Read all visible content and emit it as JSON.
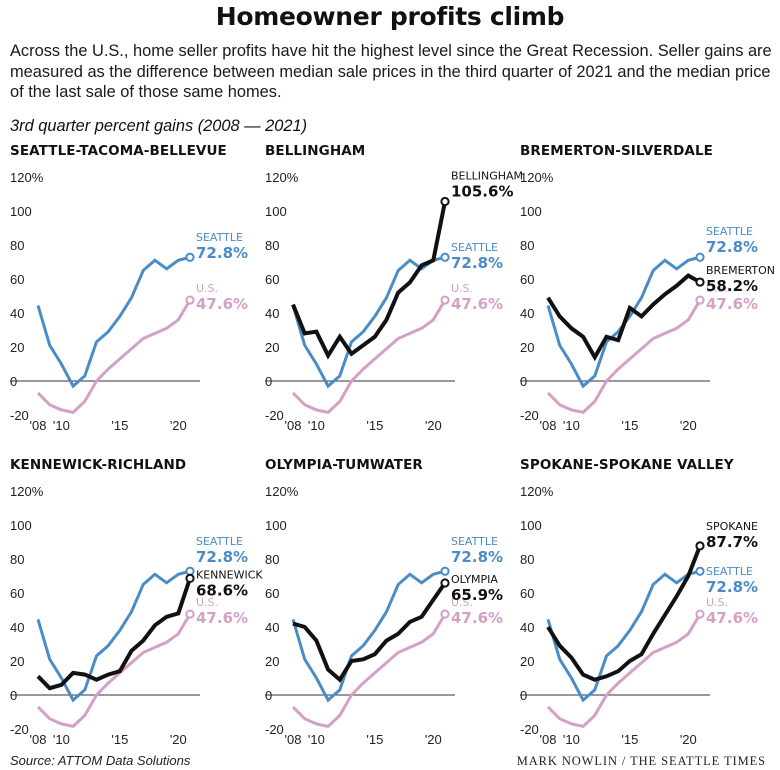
{
  "title": "Homeowner profits climb",
  "dek": "Across the U.S., home seller profits have hit the highest level since the Great Recession. Seller gains are measured as the difference between median sale prices in the third quarter of 2021 and the median price of the last sale of those same homes.",
  "subtitle": "3rd quarter percent gains (2008 — 2021)",
  "source": "Source: ATTOM Data Solutions",
  "credit": "MARK NOWLIN / THE SEATTLE TIMES",
  "colors": {
    "seattle": "#4a8cc6",
    "us": "#d3a1c8",
    "region": "#111111",
    "axis": "#333333"
  },
  "chart_data": [
    {
      "type": "line",
      "title": "SEATTLE-TACOMA-BELLEVUE",
      "x": [
        2008,
        2009,
        2010,
        2011,
        2012,
        2013,
        2014,
        2015,
        2016,
        2017,
        2018,
        2019,
        2020,
        2021
      ],
      "x_tick_labels": [
        "'08",
        "'10",
        "'15",
        "'20"
      ],
      "y_tick_labels": [
        "120%",
        "100",
        "80",
        "60",
        "40",
        "20",
        "0",
        "-20"
      ],
      "ylim": [
        -20,
        120
      ],
      "series": [
        {
          "name": "SEATTLE",
          "end_label": "72.8%",
          "values": [
            44.5,
            21,
            10,
            -3,
            3,
            23,
            29,
            38,
            49,
            65,
            71,
            66,
            71,
            72.8
          ]
        },
        {
          "name": "U.S.",
          "end_label": "47.6%",
          "values": [
            -7,
            -14,
            -17,
            -18.5,
            -12,
            0,
            7,
            13,
            19,
            25,
            28,
            31,
            36,
            47.6
          ]
        }
      ]
    },
    {
      "type": "line",
      "title": "BELLINGHAM",
      "x": [
        2008,
        2009,
        2010,
        2011,
        2012,
        2013,
        2014,
        2015,
        2016,
        2017,
        2018,
        2019,
        2020,
        2021
      ],
      "x_tick_labels": [
        "'08",
        "'10",
        "'15",
        "'20"
      ],
      "y_tick_labels": [
        "120%",
        "100",
        "80",
        "60",
        "40",
        "20",
        "0",
        "-20"
      ],
      "ylim": [
        -20,
        120
      ],
      "series": [
        {
          "name": "BELLINGHAM",
          "end_label": "105.6%",
          "values": [
            45,
            28,
            29,
            15,
            26,
            16,
            21,
            26,
            36,
            52,
            58,
            68,
            71,
            105.6
          ]
        },
        {
          "name": "SEATTLE",
          "end_label": "72.8%",
          "values": [
            44.5,
            21,
            10,
            -3,
            3,
            23,
            29,
            38,
            49,
            65,
            71,
            66,
            71,
            72.8
          ]
        },
        {
          "name": "U.S.",
          "end_label": "47.6%",
          "values": [
            -7,
            -14,
            -17,
            -18.5,
            -12,
            0,
            7,
            13,
            19,
            25,
            28,
            31,
            36,
            47.6
          ]
        }
      ]
    },
    {
      "type": "line",
      "title": "BREMERTON-SILVERDALE",
      "x": [
        2008,
        2009,
        2010,
        2011,
        2012,
        2013,
        2014,
        2015,
        2016,
        2017,
        2018,
        2019,
        2020,
        2021
      ],
      "x_tick_labels": [
        "'08",
        "'10",
        "'15",
        "'20"
      ],
      "y_tick_labels": [
        "120%",
        "100",
        "80",
        "60",
        "40",
        "20",
        "0",
        "-20"
      ],
      "ylim": [
        -20,
        120
      ],
      "series": [
        {
          "name": "BREMERTON",
          "end_label": "58.2%",
          "values": [
            49,
            38,
            31,
            26,
            14,
            26,
            24,
            43,
            38,
            45,
            51,
            56,
            62,
            58.2
          ]
        },
        {
          "name": "SEATTLE",
          "end_label": "72.8%",
          "values": [
            44.5,
            21,
            10,
            -3,
            3,
            23,
            29,
            38,
            49,
            65,
            71,
            66,
            71,
            72.8
          ]
        },
        {
          "name": "U.S.",
          "end_label": "47.6%",
          "values": [
            -7,
            -14,
            -17,
            -18.5,
            -12,
            0,
            7,
            13,
            19,
            25,
            28,
            31,
            36,
            47.6
          ]
        }
      ]
    },
    {
      "type": "line",
      "title": "KENNEWICK-RICHLAND",
      "x": [
        2008,
        2009,
        2010,
        2011,
        2012,
        2013,
        2014,
        2015,
        2016,
        2017,
        2018,
        2019,
        2020,
        2021
      ],
      "x_tick_labels": [
        "'08",
        "'10",
        "'15",
        "'20"
      ],
      "y_tick_labels": [
        "120%",
        "100",
        "80",
        "60",
        "40",
        "20",
        "0",
        "-20"
      ],
      "ylim": [
        -20,
        120
      ],
      "series": [
        {
          "name": "KENNEWICK",
          "end_label": "68.6%",
          "values": [
            11,
            4,
            6,
            13,
            12,
            9,
            12,
            14,
            26,
            32,
            41,
            46,
            48,
            68.6
          ]
        },
        {
          "name": "SEATTLE",
          "end_label": "72.8%",
          "values": [
            44.5,
            21,
            10,
            -3,
            3,
            23,
            29,
            38,
            49,
            65,
            71,
            66,
            71,
            72.8
          ]
        },
        {
          "name": "U.S.",
          "end_label": "47.6%",
          "values": [
            -7,
            -14,
            -17,
            -18.5,
            -12,
            0,
            7,
            13,
            19,
            25,
            28,
            31,
            36,
            47.6
          ]
        }
      ]
    },
    {
      "type": "line",
      "title": "OLYMPIA-TUMWATER",
      "x": [
        2008,
        2009,
        2010,
        2011,
        2012,
        2013,
        2014,
        2015,
        2016,
        2017,
        2018,
        2019,
        2020,
        2021
      ],
      "x_tick_labels": [
        "'08",
        "'10",
        "'15",
        "'20"
      ],
      "y_tick_labels": [
        "120%",
        "100",
        "80",
        "60",
        "40",
        "20",
        "0",
        "-20"
      ],
      "ylim": [
        -20,
        120
      ],
      "series": [
        {
          "name": "OLYMPIA",
          "end_label": "65.9%",
          "values": [
            42,
            40,
            32,
            15,
            9,
            20,
            21,
            24,
            32,
            36,
            43,
            46,
            56,
            65.9
          ]
        },
        {
          "name": "SEATTLE",
          "end_label": "72.8%",
          "values": [
            44.5,
            21,
            10,
            -3,
            3,
            23,
            29,
            38,
            49,
            65,
            71,
            66,
            71,
            72.8
          ]
        },
        {
          "name": "U.S.",
          "end_label": "47.6%",
          "values": [
            -7,
            -14,
            -17,
            -18.5,
            -12,
            0,
            7,
            13,
            19,
            25,
            28,
            31,
            36,
            47.6
          ]
        }
      ]
    },
    {
      "type": "line",
      "title": "SPOKANE-SPOKANE VALLEY",
      "x": [
        2008,
        2009,
        2010,
        2011,
        2012,
        2013,
        2014,
        2015,
        2016,
        2017,
        2018,
        2019,
        2020,
        2021
      ],
      "x_tick_labels": [
        "'08",
        "'10",
        "'15",
        "'20"
      ],
      "y_tick_labels": [
        "120%",
        "100",
        "80",
        "60",
        "40",
        "20",
        "0",
        "-20"
      ],
      "ylim": [
        -20,
        120
      ],
      "series": [
        {
          "name": "SPOKANE",
          "end_label": "87.7%",
          "values": [
            40,
            29,
            22,
            12,
            9,
            11,
            14,
            20,
            24,
            36,
            47,
            58,
            70,
            87.7
          ]
        },
        {
          "name": "SEATTLE",
          "end_label": "72.8%",
          "values": [
            44.5,
            21,
            10,
            -3,
            3,
            23,
            29,
            38,
            49,
            65,
            71,
            66,
            71,
            72.8
          ]
        },
        {
          "name": "U.S.",
          "end_label": "47.6%",
          "values": [
            -7,
            -14,
            -17,
            -18.5,
            -12,
            0,
            7,
            13,
            19,
            25,
            28,
            31,
            36,
            47.6
          ]
        }
      ]
    }
  ]
}
